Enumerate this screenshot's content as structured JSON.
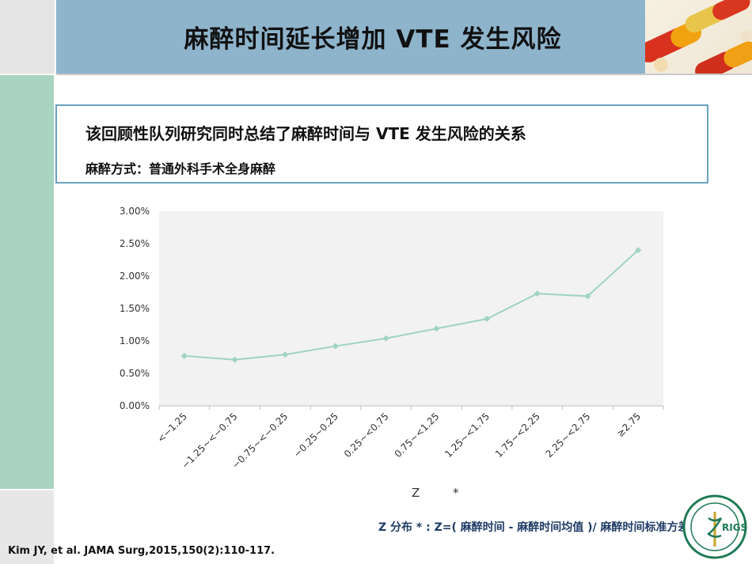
{
  "header": {
    "title": "麻醉时间延长增加 VTE 发生风险"
  },
  "info": {
    "line1": "该回顾性队列研究同时总结了麻醉时间与 VTE 发生风险的关系",
    "line2": "麻醉方式：普通外科手术全身麻醉"
  },
  "footer": {
    "z_label": "Z",
    "star": "*",
    "formula": "Z 分布 * :   Z=( 麻醉时间 - 麻醉时间均值 )/ 麻醉时间标准方差",
    "citation": "Kim JY, et al. JAMA Surg,2015,150(2):110-117.",
    "logo_text": "RIGS"
  },
  "colors": {
    "header_bg": "#8eb4cc",
    "left_strip": "#a9d4c1",
    "box_border": "#6aa2bd",
    "series": "#9ed4bf",
    "plot_bg": "#f2f2f2",
    "logo_green": "#1e7a55"
  },
  "chart_data": {
    "type": "line",
    "categories": [
      "<−1.25",
      "−1.25~<−0.75",
      "−0.75~<−0.25",
      "−0.25~0.25",
      "0.25~<0.75",
      "0.75~<1.25",
      "1.25~<1.75",
      "1.75~<2.25",
      "2.25~<2.75",
      "≥2.75"
    ],
    "series": [
      {
        "values": [
          0.77,
          0.71,
          0.79,
          0.92,
          1.04,
          1.19,
          1.34,
          1.73,
          1.69,
          2.4
        ]
      }
    ],
    "y_ticks": [
      "0.00%",
      "0.50%",
      "1.00%",
      "1.50%",
      "2.00%",
      "2.50%",
      "3.00%"
    ],
    "ylim": [
      0,
      3.0
    ],
    "grid": false,
    "legend": "none"
  }
}
